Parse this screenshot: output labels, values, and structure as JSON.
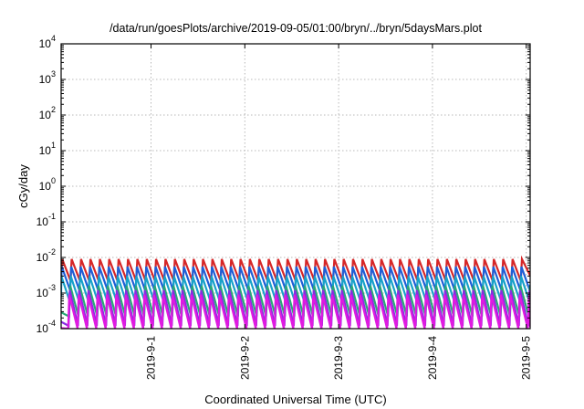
{
  "chart_data": {
    "type": "line",
    "title": "/data/run/goesPlots/archive/2019-09-05/01:00/bryn/../bryn/5daysMars.plot",
    "xlabel": "Coordinated Universal Time (UTC)",
    "ylabel": "cGy/day",
    "yscale": "log",
    "ylim": [
      0.0001,
      10000
    ],
    "xlim": [
      "2019-08-31 01:00",
      "2019-09-05 01:00"
    ],
    "y_ticks": [
      {
        "base": "10",
        "exp": "-4",
        "value": 0.0001
      },
      {
        "base": "10",
        "exp": "-3",
        "value": 0.001
      },
      {
        "base": "10",
        "exp": "-2",
        "value": 0.01
      },
      {
        "base": "10",
        "exp": "-1",
        "value": 0.1
      },
      {
        "base": "10",
        "exp": "0",
        "value": 1
      },
      {
        "base": "10",
        "exp": "1",
        "value": 10
      },
      {
        "base": "10",
        "exp": "2",
        "value": 100
      },
      {
        "base": "10",
        "exp": "3",
        "value": 1000
      },
      {
        "base": "10",
        "exp": "4",
        "value": 10000
      }
    ],
    "x_ticks": [
      {
        "label": "2019-9-1",
        "value": "2019-09-01 00:00"
      },
      {
        "label": "2019-9-2",
        "value": "2019-09-02 00:00"
      },
      {
        "label": "2019-9-3",
        "value": "2019-09-03 00:00"
      },
      {
        "label": "2019-9-4",
        "value": "2019-09-04 00:00"
      },
      {
        "label": "2019-9-5",
        "value": "2019-09-05 00:00"
      }
    ],
    "grid": true,
    "sawtooth_period_hours": 2.4,
    "series": [
      {
        "color": "#d62728",
        "peak": 0.009,
        "trough": 0.0022
      },
      {
        "color": "#1f5fd6",
        "peak": 0.0055,
        "trough": 0.0012
      },
      {
        "color": "#17a2c8",
        "peak": 0.003,
        "trough": 0.0006
      },
      {
        "color": "#2aa876",
        "peak": 0.0016,
        "trough": 0.00022
      },
      {
        "color": "#8a2be2",
        "peak": 0.0012,
        "trough": 0.00012
      },
      {
        "color": "#e01ae0",
        "peak": 0.0009,
        "trough": 8e-05
      }
    ]
  }
}
